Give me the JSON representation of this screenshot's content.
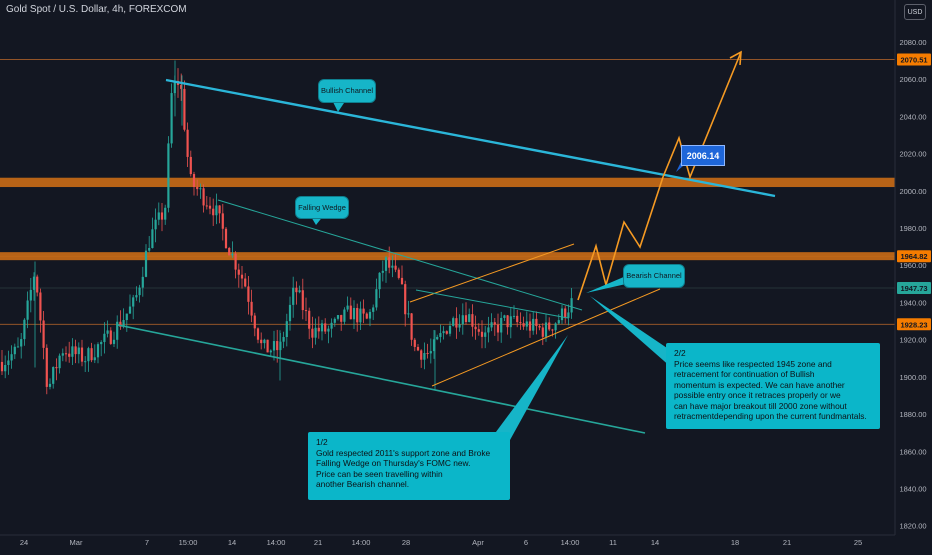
{
  "header": {
    "title": "Gold Spot / U.S. Dollar, 4h, FOREXCOM",
    "currency_button": "USD"
  },
  "price_axis": {
    "ticks": [
      "2080.00",
      "2060.00",
      "2040.00",
      "2020.00",
      "2000.00",
      "1980.00",
      "1960.00",
      "1940.00",
      "1920.00",
      "1900.00",
      "1880.00",
      "1860.00",
      "1840.00",
      "1820.00"
    ],
    "tick_values": [
      2080,
      2060,
      2040,
      2020,
      2000,
      1980,
      1960,
      1940,
      1920,
      1900,
      1880,
      1860,
      1840,
      1820
    ],
    "badges": [
      {
        "label": "2070.51",
        "value": 2070.51,
        "color": "#f57c00",
        "text_color": "#131722"
      },
      {
        "label": "1964.82",
        "value": 1964.82,
        "color": "#f57c00",
        "text_color": "#131722"
      },
      {
        "label": "1947.73",
        "value": 1947.73,
        "color": "#26a69a",
        "text_color": "#131722"
      },
      {
        "label": "1928.23",
        "value": 1928.23,
        "color": "#f57c00",
        "text_color": "#131722"
      }
    ]
  },
  "time_axis": {
    "labels": [
      "24",
      "Mar",
      "7",
      "15:00",
      "14",
      "14:00",
      "21",
      "14:00",
      "28",
      "Apr",
      "6",
      "14:00",
      "11",
      "14",
      "18",
      "21",
      "25"
    ]
  },
  "annotations": {
    "bullish_channel": "Bullish Channel",
    "falling_wedge": "Falling Wedge",
    "bearish_channel": "Bearish Channel",
    "target_price": "2006.14",
    "note_left": "1/2\nGold respected 2011's support zone and Broke\nFalling Wedge on Thursday's FOMC new.\nPrice can be seen travelling within\nanother Bearish channel.",
    "note_right": "2/2\nPrice seems like respected 1945 zone and\nretracement for continuation of Bullish\nmomentum is expected. We can have another\npossible entry once it retraces properly or we\ncan have major breakout till 2000 zone without\nretracmentdepending upon the current fundmantals."
  },
  "colors": {
    "background": "#131722",
    "up_candle": "#26a69a",
    "down_candle": "#ef5350",
    "zone": "#c56a17",
    "bullish_line": "#2bb6d9",
    "wedge_line": "#26a69a",
    "projection": "#f59a23",
    "callout": "#16b5c8"
  },
  "chart_data": {
    "type": "candlestick",
    "title": "Gold Spot / U.S. Dollar, 4h, FOREXCOM",
    "ylim": [
      1815,
      2088
    ],
    "levels": [
      2070.51,
      1964.82,
      1947.73,
      1928.23
    ],
    "zones": [
      [
        2002,
        2007
      ],
      [
        1963,
        1967
      ]
    ],
    "projection_path": [
      1940,
      1966,
      1950,
      1968,
      1944,
      1971,
      1955,
      2002,
      2022,
      2004,
      2071
    ]
  }
}
